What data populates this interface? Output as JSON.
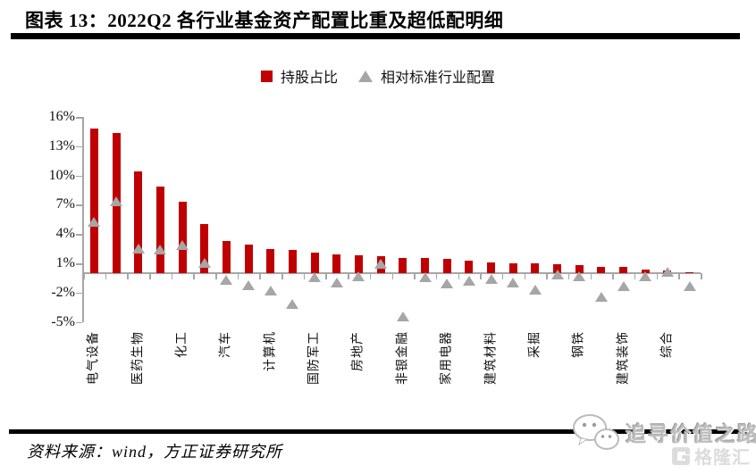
{
  "header": {
    "title": "图表 13：2022Q2 各行业基金资产配置比重及超低配明细"
  },
  "legend": {
    "items": [
      {
        "label": "持股占比",
        "marker": "square",
        "color": "#C00000"
      },
      {
        "label": "相对标准行业配置",
        "marker": "triangle",
        "color": "#A6A6A6"
      }
    ]
  },
  "chart_data": {
    "type": "bar",
    "title": "2022Q2 各行业基金资产配置比重及超低配明细",
    "categories": [
      "电气设备",
      "",
      "医药生物",
      "",
      "化工",
      "",
      "汽车",
      "",
      "计算机",
      "",
      "国防军工",
      "",
      "房地产",
      "",
      "非银金融",
      "",
      "家用电器",
      "",
      "建筑材料",
      "",
      "采掘",
      "",
      "钢铁",
      "",
      "建筑装饰",
      "",
      "综合",
      ""
    ],
    "series": [
      {
        "name": "持股占比",
        "type": "bar",
        "color": "#C00000",
        "values": [
          14.8,
          14.4,
          10.4,
          8.9,
          7.3,
          5.0,
          3.3,
          2.9,
          2.5,
          2.4,
          2.1,
          1.9,
          1.8,
          1.7,
          1.6,
          1.6,
          1.5,
          1.3,
          1.1,
          1.0,
          1.0,
          0.9,
          0.8,
          0.6,
          0.6,
          0.4,
          0.3,
          0.1
        ]
      },
      {
        "name": "相对标准行业配置",
        "type": "scatter",
        "marker": "triangle",
        "color": "#A6A6A6",
        "values": [
          5.2,
          7.3,
          2.5,
          2.4,
          2.8,
          1.0,
          -0.7,
          -1.3,
          -1.8,
          -3.2,
          -0.5,
          -1.0,
          -0.4,
          0.9,
          -4.5,
          -0.5,
          -1.1,
          -0.8,
          -0.6,
          -1.0,
          -1.7,
          -0.2,
          -0.4,
          -2.5,
          -1.4,
          -0.4,
          0.1,
          -1.4
        ]
      }
    ],
    "yticks": [
      16,
      13,
      10,
      7,
      4,
      1,
      -2,
      -5
    ],
    "ytick_labels": [
      "16%",
      "13%",
      "10%",
      "7%",
      "4%",
      "1%",
      "-2%",
      "-5%"
    ],
    "ylim": [
      -5,
      16
    ],
    "xlabel": "",
    "ylabel": "",
    "grid": false,
    "legend_position": "top-center",
    "axis_color": "#A6A6A6"
  },
  "footer": {
    "source": "资料来源：wind，方正证券研究所"
  },
  "watermark": {
    "text": "追寻价值之路",
    "logo_text": "格隆汇"
  }
}
